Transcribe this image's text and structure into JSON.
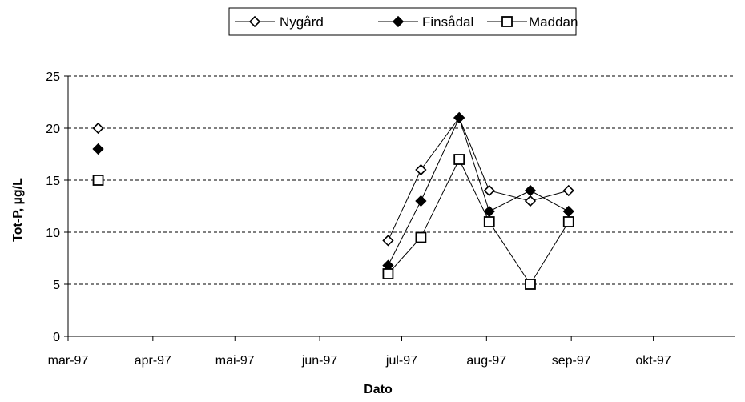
{
  "chart_data": {
    "type": "line",
    "title": "",
    "xlabel": "Dato",
    "ylabel": "Tot-P, µg/L",
    "ylim": [
      0,
      25
    ],
    "yticks": [
      0,
      5,
      10,
      15,
      20,
      25
    ],
    "xlim": [
      "1997-03-01",
      "1997-10-31"
    ],
    "xticks": [
      {
        "date": "1997-03-01",
        "label": "mar-97"
      },
      {
        "date": "1997-04-01",
        "label": "apr-97"
      },
      {
        "date": "1997-05-01",
        "label": "mai-97"
      },
      {
        "date": "1997-06-01",
        "label": "jun-97"
      },
      {
        "date": "1997-07-01",
        "label": "jul-97"
      },
      {
        "date": "1997-08-01",
        "label": "aug-97"
      },
      {
        "date": "1997-09-01",
        "label": "sep-97"
      },
      {
        "date": "1997-10-01",
        "label": "okt-97"
      }
    ],
    "grid": "horizontal dashed",
    "legend_position": "top-center",
    "series": [
      {
        "name": "Nygård",
        "marker": "diamond-open",
        "color": "#000000",
        "segments": [
          [
            {
              "x": "1997-03-12",
              "y": 20
            }
          ],
          [
            {
              "x": "1997-06-26",
              "y": 9.2
            },
            {
              "x": "1997-07-08",
              "y": 16
            },
            {
              "x": "1997-07-22",
              "y": 21
            },
            {
              "x": "1997-08-02",
              "y": 14
            },
            {
              "x": "1997-08-17",
              "y": 13
            },
            {
              "x": "1997-08-31",
              "y": 14
            }
          ]
        ]
      },
      {
        "name": "Finsådal",
        "marker": "diamond-filled",
        "color": "#000000",
        "segments": [
          [
            {
              "x": "1997-03-12",
              "y": 18
            }
          ],
          [
            {
              "x": "1997-06-26",
              "y": 6.8
            },
            {
              "x": "1997-07-08",
              "y": 13
            },
            {
              "x": "1997-07-22",
              "y": 21
            },
            {
              "x": "1997-08-02",
              "y": 12
            },
            {
              "x": "1997-08-17",
              "y": 14
            },
            {
              "x": "1997-08-31",
              "y": 12
            }
          ]
        ]
      },
      {
        "name": "Maddan",
        "marker": "square-open",
        "color": "#000000",
        "segments": [
          [
            {
              "x": "1997-03-12",
              "y": 15
            }
          ],
          [
            {
              "x": "1997-06-26",
              "y": 6
            },
            {
              "x": "1997-07-08",
              "y": 9.5
            },
            {
              "x": "1997-07-22",
              "y": 17
            },
            {
              "x": "1997-08-02",
              "y": 11
            },
            {
              "x": "1997-08-17",
              "y": 5
            },
            {
              "x": "1997-08-31",
              "y": 11
            }
          ]
        ]
      }
    ]
  }
}
